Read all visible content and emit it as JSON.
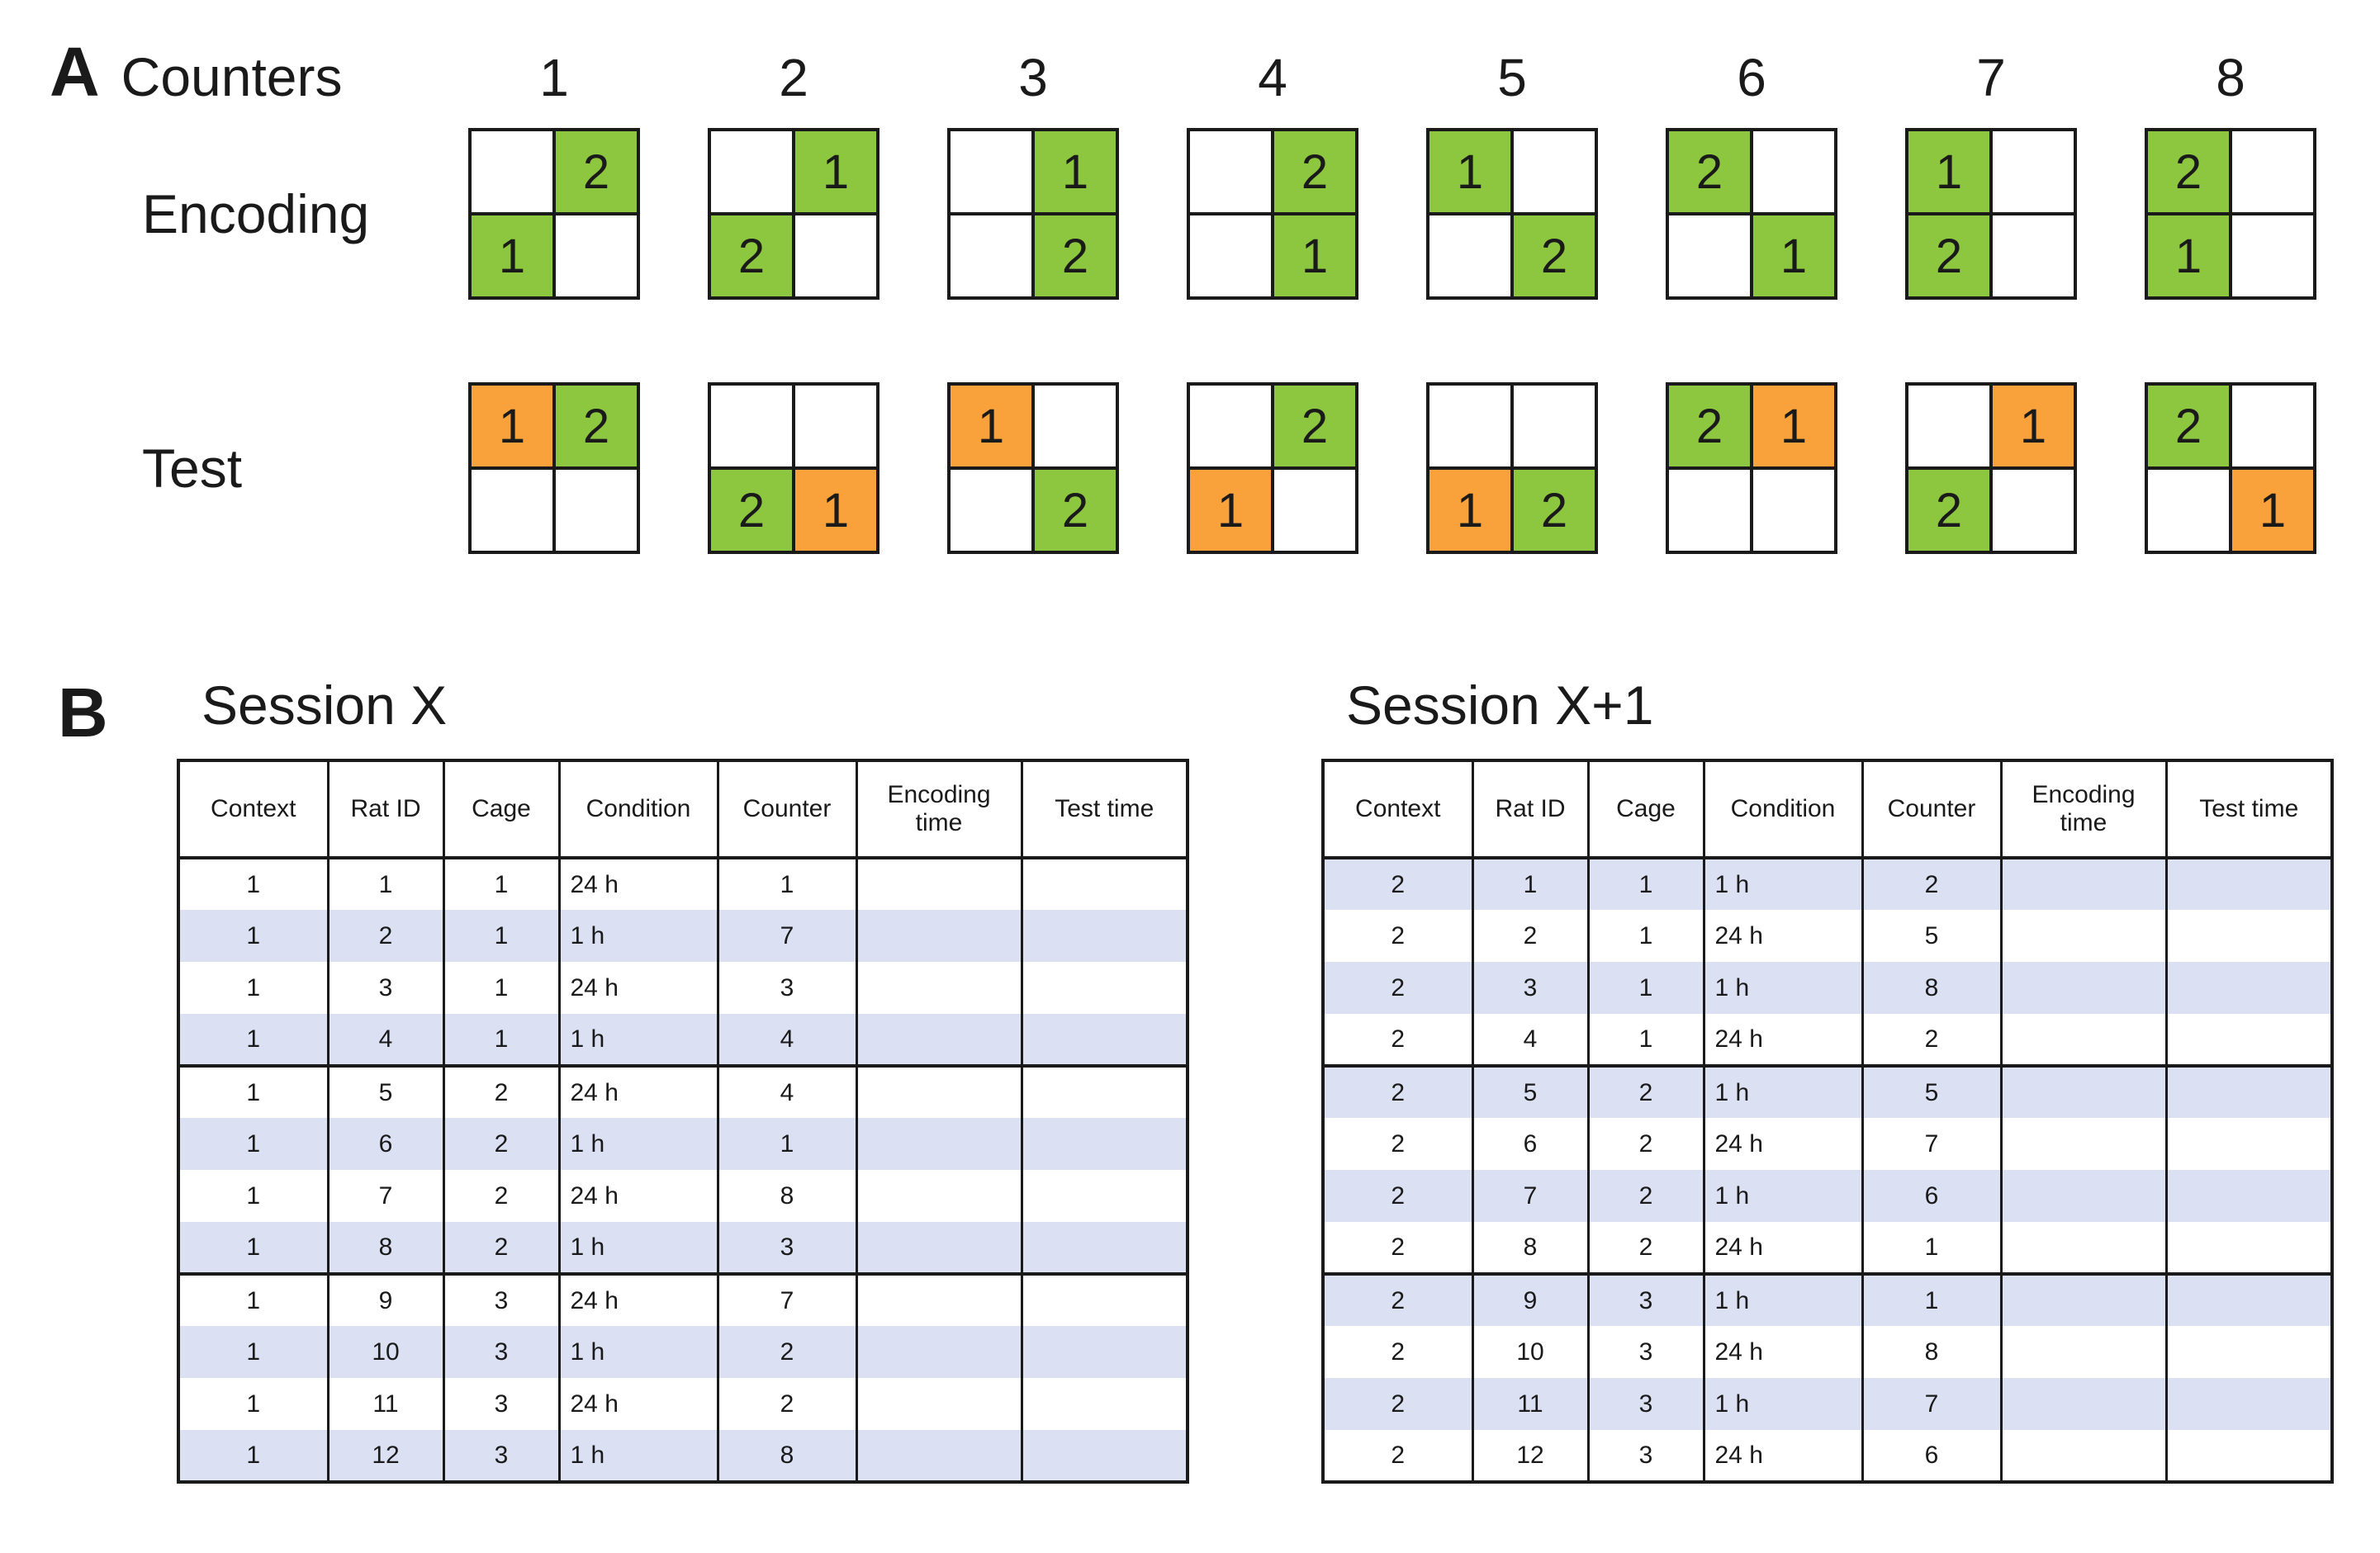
{
  "colors": {
    "green": "#8dc63f",
    "orange": "#f9a13a",
    "stripe": "#dbe0f3",
    "line": "#1a1a1a"
  },
  "panelA": {
    "label": "A",
    "title": "Counters",
    "encoding_label": "Encoding",
    "test_label": "Test",
    "counter_numbers": [
      "1",
      "2",
      "3",
      "4",
      "5",
      "6",
      "7",
      "8"
    ],
    "encoding_grids": [
      [
        null,
        {
          "n": "2",
          "color": "green"
        },
        {
          "n": "1",
          "color": "green"
        },
        null
      ],
      [
        null,
        {
          "n": "1",
          "color": "green"
        },
        {
          "n": "2",
          "color": "green"
        },
        null
      ],
      [
        null,
        {
          "n": "1",
          "color": "green"
        },
        null,
        {
          "n": "2",
          "color": "green"
        }
      ],
      [
        null,
        {
          "n": "2",
          "color": "green"
        },
        null,
        {
          "n": "1",
          "color": "green"
        }
      ],
      [
        {
          "n": "1",
          "color": "green"
        },
        null,
        null,
        {
          "n": "2",
          "color": "green"
        }
      ],
      [
        {
          "n": "2",
          "color": "green"
        },
        null,
        null,
        {
          "n": "1",
          "color": "green"
        }
      ],
      [
        {
          "n": "1",
          "color": "green"
        },
        null,
        {
          "n": "2",
          "color": "green"
        },
        null
      ],
      [
        {
          "n": "2",
          "color": "green"
        },
        null,
        {
          "n": "1",
          "color": "green"
        },
        null
      ]
    ],
    "test_grids": [
      [
        {
          "n": "1",
          "color": "orange"
        },
        {
          "n": "2",
          "color": "green"
        },
        null,
        null
      ],
      [
        null,
        null,
        {
          "n": "2",
          "color": "green"
        },
        {
          "n": "1",
          "color": "orange"
        }
      ],
      [
        {
          "n": "1",
          "color": "orange"
        },
        null,
        null,
        {
          "n": "2",
          "color": "green"
        }
      ],
      [
        null,
        {
          "n": "2",
          "color": "green"
        },
        {
          "n": "1",
          "color": "orange"
        },
        null
      ],
      [
        null,
        null,
        {
          "n": "1",
          "color": "orange"
        },
        {
          "n": "2",
          "color": "green"
        }
      ],
      [
        {
          "n": "2",
          "color": "green"
        },
        {
          "n": "1",
          "color": "orange"
        },
        null,
        null
      ],
      [
        null,
        {
          "n": "1",
          "color": "orange"
        },
        {
          "n": "2",
          "color": "green"
        },
        null
      ],
      [
        {
          "n": "2",
          "color": "green"
        },
        null,
        null,
        {
          "n": "1",
          "color": "orange"
        }
      ]
    ]
  },
  "panelB": {
    "label": "B",
    "tables": [
      {
        "title": "Session X",
        "headers": [
          "Context",
          "Rat ID",
          "Cage",
          "Condition",
          "Counter",
          "Encoding time",
          "Test time"
        ],
        "striped": "even",
        "rows": [
          [
            "1",
            "1",
            "1",
            "24 h",
            "1",
            "",
            ""
          ],
          [
            "1",
            "2",
            "1",
            "1 h",
            "7",
            "",
            ""
          ],
          [
            "1",
            "3",
            "1",
            "24 h",
            "3",
            "",
            ""
          ],
          [
            "1",
            "4",
            "1",
            "1 h",
            "4",
            "",
            ""
          ],
          [
            "1",
            "5",
            "2",
            "24 h",
            "4",
            "",
            ""
          ],
          [
            "1",
            "6",
            "2",
            "1 h",
            "1",
            "",
            ""
          ],
          [
            "1",
            "7",
            "2",
            "24 h",
            "8",
            "",
            ""
          ],
          [
            "1",
            "8",
            "2",
            "1 h",
            "3",
            "",
            ""
          ],
          [
            "1",
            "9",
            "3",
            "24 h",
            "7",
            "",
            ""
          ],
          [
            "1",
            "10",
            "3",
            "1 h",
            "2",
            "",
            ""
          ],
          [
            "1",
            "11",
            "3",
            "24 h",
            "2",
            "",
            ""
          ],
          [
            "1",
            "12",
            "3",
            "1 h",
            "8",
            "",
            ""
          ]
        ]
      },
      {
        "title": "Session X+1",
        "headers": [
          "Context",
          "Rat ID",
          "Cage",
          "Condition",
          "Counter",
          "Encoding time",
          "Test time"
        ],
        "striped": "odd",
        "rows": [
          [
            "2",
            "1",
            "1",
            "1 h",
            "2",
            "",
            ""
          ],
          [
            "2",
            "2",
            "1",
            "24 h",
            "5",
            "",
            ""
          ],
          [
            "2",
            "3",
            "1",
            "1 h",
            "8",
            "",
            ""
          ],
          [
            "2",
            "4",
            "1",
            "24 h",
            "2",
            "",
            ""
          ],
          [
            "2",
            "5",
            "2",
            "1 h",
            "5",
            "",
            ""
          ],
          [
            "2",
            "6",
            "2",
            "24 h",
            "7",
            "",
            ""
          ],
          [
            "2",
            "7",
            "2",
            "1 h",
            "6",
            "",
            ""
          ],
          [
            "2",
            "8",
            "2",
            "24 h",
            "1",
            "",
            ""
          ],
          [
            "2",
            "9",
            "3",
            "1 h",
            "1",
            "",
            ""
          ],
          [
            "2",
            "10",
            "3",
            "24 h",
            "8",
            "",
            ""
          ],
          [
            "2",
            "11",
            "3",
            "1 h",
            "7",
            "",
            ""
          ],
          [
            "2",
            "12",
            "3",
            "24 h",
            "6",
            "",
            ""
          ]
        ]
      }
    ]
  }
}
